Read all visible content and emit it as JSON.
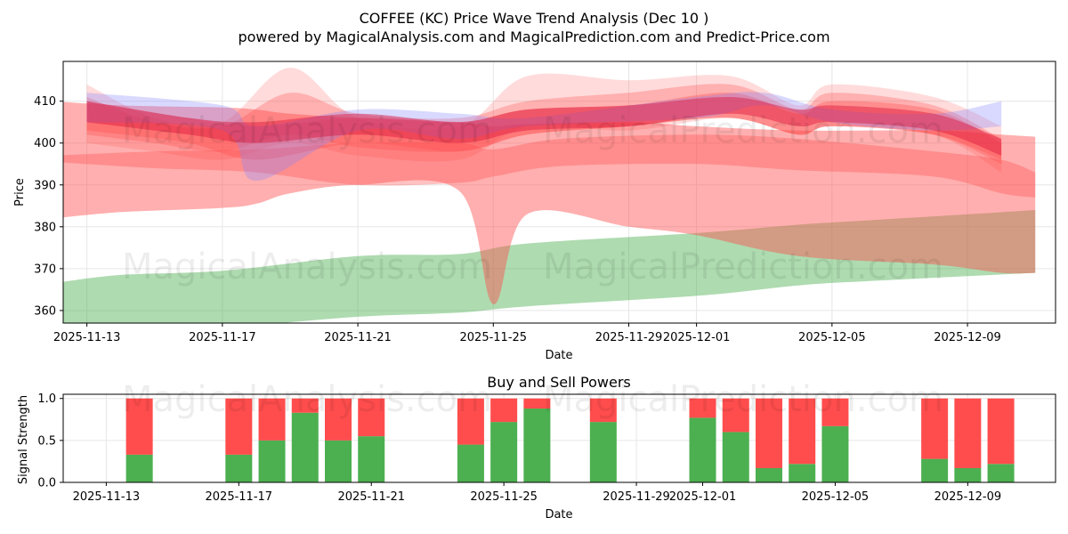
{
  "title": "COFFEE (KC) Price Wave Trend Analysis (Dec 10 )",
  "subtitle": "powered by MagicalAnalysis.com and MagicalPrediction.com and Predict-Price.com",
  "watermarks": [
    "MagicalAnalysis.com",
    "MagicalPrediction.com"
  ],
  "colors": {
    "red_band": "#ff4d4d",
    "green_band": "#4caf50",
    "blue_band": "#8080ff",
    "buy": "#4caf50",
    "sell": "#ff4d4d",
    "grid": "#e6e6e6"
  },
  "chart_data": [
    {
      "type": "area",
      "title": "",
      "xlabel": "Date",
      "ylabel": "Price",
      "ylim": [
        357,
        419.5
      ],
      "xlim": [
        "2025-11-12.3",
        "2025-12-11.6"
      ],
      "grid": true,
      "x_ticks": [
        "2025-11-13",
        "2025-11-17",
        "2025-11-21",
        "2025-11-25",
        "2025-11-29",
        "2025-12-01",
        "2025-12-05",
        "2025-12-09"
      ],
      "y_ticks": [
        360,
        370,
        380,
        390,
        400,
        410
      ],
      "series": [
        {
          "name": "green band",
          "color": "green",
          "opacity": 0.45,
          "x": [
            "2025-11-12",
            "2025-11-14",
            "2025-11-17",
            "2025-11-21",
            "2025-11-24",
            "2025-11-26",
            "2025-12-01",
            "2025-12-04",
            "2025-12-06",
            "2025-12-11"
          ],
          "upper": [
            366.5,
            368.5,
            369.5,
            373,
            373.5,
            376,
            378.5,
            380.5,
            381.5,
            384
          ],
          "lower": [
            357,
            355.5,
            356,
            358.5,
            359.5,
            361,
            363.5,
            366,
            367,
            369
          ]
        },
        {
          "name": "red wide band",
          "color": "red",
          "opacity": 0.45,
          "x": [
            "2025-11-12",
            "2025-11-14",
            "2025-11-17",
            "2025-11-18",
            "2025-11-19",
            "2025-11-21",
            "2025-11-24",
            "2025-11-25",
            "2025-11-26",
            "2025-11-29",
            "2025-12-01",
            "2025-12-04",
            "2025-12-08",
            "2025-12-10",
            "2025-12-11"
          ],
          "upper": [
            410,
            409,
            408.5,
            408,
            407,
            406,
            405,
            404,
            404.5,
            405,
            404,
            403,
            403,
            402,
            401.5
          ],
          "lower": [
            382,
            383.5,
            384.5,
            385.5,
            388,
            390,
            388.5,
            361.5,
            383,
            380,
            378,
            373,
            371,
            369,
            369
          ]
        },
        {
          "name": "red narrow band 1",
          "color": "red",
          "opacity": 0.35,
          "x": [
            "2025-11-12",
            "2025-11-15",
            "2025-11-18",
            "2025-11-21",
            "2025-11-24",
            "2025-11-25",
            "2025-11-27",
            "2025-12-01",
            "2025-12-04",
            "2025-12-08",
            "2025-12-10",
            "2025-12-11"
          ],
          "upper": [
            397,
            398,
            398.5,
            400,
            400,
            398.5,
            401,
            402,
            401,
            398,
            396,
            393
          ],
          "lower": [
            395.5,
            394,
            393,
            390,
            390.5,
            392,
            394.5,
            395,
            393.5,
            392,
            388,
            387
          ]
        },
        {
          "name": "red wave 1",
          "color": "red",
          "opacity": 0.2,
          "x": [
            "2025-11-13",
            "2025-11-15",
            "2025-11-17",
            "2025-11-19",
            "2025-11-21",
            "2025-11-24",
            "2025-11-26",
            "2025-11-29",
            "2025-12-02",
            "2025-12-04",
            "2025-12-05",
            "2025-12-08",
            "2025-12-10"
          ],
          "upper": [
            414,
            406,
            405,
            418,
            406,
            404,
            416,
            415,
            416,
            409,
            414,
            411,
            404
          ],
          "lower": [
            400,
            398,
            396,
            400,
            397,
            396,
            404,
            403,
            406,
            402,
            404,
            402,
            393
          ]
        },
        {
          "name": "red wave 2",
          "color": "red",
          "opacity": 0.3,
          "x": [
            "2025-11-13",
            "2025-11-15",
            "2025-11-17",
            "2025-11-19",
            "2025-11-21",
            "2025-11-24",
            "2025-11-26",
            "2025-11-29",
            "2025-12-02",
            "2025-12-04",
            "2025-12-05",
            "2025-12-08",
            "2025-12-10"
          ],
          "upper": [
            411,
            405,
            404,
            412,
            407,
            406,
            410,
            412,
            414,
            408,
            412,
            409,
            401
          ],
          "lower": [
            402,
            400,
            398,
            402,
            399,
            398,
            402,
            404,
            406,
            402,
            404,
            402,
            395
          ]
        },
        {
          "name": "red wave 3",
          "color": "red",
          "opacity": 0.35,
          "x": [
            "2025-11-13",
            "2025-11-16",
            "2025-11-18",
            "2025-11-21",
            "2025-11-24",
            "2025-11-26",
            "2025-11-29",
            "2025-12-02",
            "2025-12-04",
            "2025-12-05",
            "2025-12-08",
            "2025-12-10"
          ],
          "upper": [
            410,
            406,
            404,
            406,
            405,
            408,
            409,
            412,
            407,
            410,
            408,
            400
          ],
          "lower": [
            403,
            400,
            396,
            400,
            398,
            402,
            404,
            406,
            402,
            404,
            402,
            396
          ]
        },
        {
          "name": "blue wave",
          "color": "blue",
          "opacity": 0.3,
          "x": [
            "2025-11-13",
            "2025-11-17",
            "2025-11-18",
            "2025-11-21",
            "2025-11-24",
            "2025-11-26",
            "2025-12-01",
            "2025-12-03",
            "2025-12-05",
            "2025-12-08",
            "2025-12-10"
          ],
          "upper": [
            412,
            409,
            404,
            408,
            407,
            406,
            411,
            412,
            408,
            407,
            410
          ],
          "lower": [
            405,
            403,
            391,
            403,
            401,
            404,
            406,
            409,
            405,
            403,
            404
          ]
        },
        {
          "name": "crimson core",
          "color": "crimson",
          "opacity": 0.45,
          "x": [
            "2025-11-13",
            "2025-11-16",
            "2025-11-18",
            "2025-11-21",
            "2025-11-24",
            "2025-11-26",
            "2025-11-29",
            "2025-12-02",
            "2025-12-04",
            "2025-12-05",
            "2025-12-08",
            "2025-12-10"
          ],
          "upper": [
            410,
            406,
            405,
            407,
            405,
            408,
            409,
            411,
            408,
            409,
            407,
            401
          ],
          "lower": [
            405,
            402,
            400,
            402,
            400,
            403,
            404,
            407,
            404,
            405,
            403,
            397
          ]
        }
      ]
    },
    {
      "type": "bar",
      "title": "Buy and Sell Powers",
      "xlabel": "Date",
      "ylabel": "Signal Strength",
      "ylim": [
        0,
        1.05
      ],
      "grid": true,
      "x_ticks": [
        "2025-11-13",
        "2025-11-17",
        "2025-11-21",
        "2025-11-25",
        "2025-11-29",
        "2025-12-01",
        "2025-12-05",
        "2025-12-09"
      ],
      "y_ticks": [
        "0.0",
        "0.5",
        "1.0"
      ],
      "categories": [
        "2025-11-14",
        "2025-11-17",
        "2025-11-18",
        "2025-11-19",
        "2025-11-20",
        "2025-11-21",
        "2025-11-24",
        "2025-11-25",
        "2025-11-26",
        "2025-11-28",
        "2025-12-01",
        "2025-12-02",
        "2025-12-03",
        "2025-12-04",
        "2025-12-05",
        "2025-12-08",
        "2025-12-09",
        "2025-12-10"
      ],
      "series": [
        {
          "name": "Buy",
          "color": "green",
          "values": [
            0.33,
            0.33,
            0.5,
            0.83,
            0.5,
            0.55,
            0.45,
            0.72,
            0.88,
            0.72,
            0.77,
            0.6,
            0.17,
            0.22,
            0.67,
            0.28,
            0.17,
            0.22
          ]
        },
        {
          "name": "Sell",
          "color": "red",
          "values": [
            0.67,
            0.67,
            0.5,
            0.17,
            0.5,
            0.45,
            0.55,
            0.28,
            0.12,
            0.28,
            0.23,
            0.4,
            0.83,
            0.78,
            0.33,
            0.72,
            0.83,
            0.78
          ]
        }
      ]
    }
  ]
}
